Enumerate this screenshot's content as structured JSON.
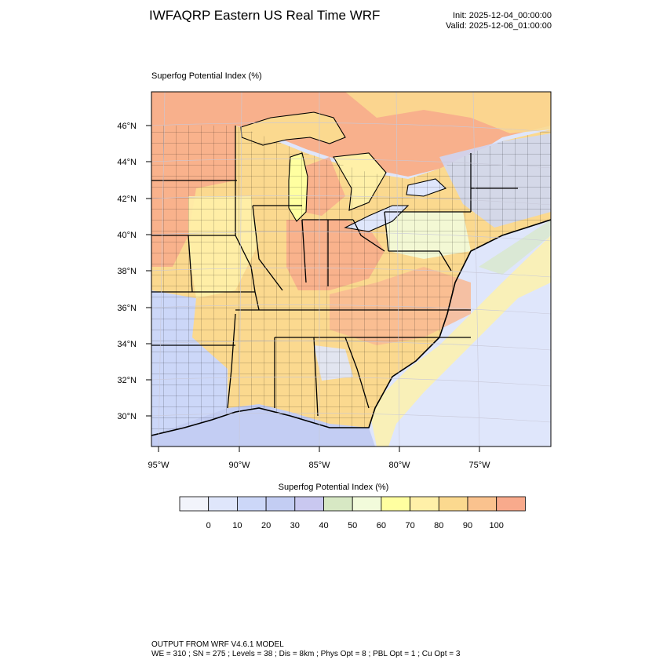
{
  "header": {
    "title": "IWFAQRP Eastern US Real Time WRF",
    "init": "Init: 2025-12-04_00:00:00",
    "valid": "Valid: 2025-12-06_01:00:00"
  },
  "plot": {
    "label": "Superfog Potential Index   (%)",
    "lat_labels": [
      "46°N",
      "44°N",
      "42°N",
      "40°N",
      "38°N",
      "36°N",
      "34°N",
      "32°N",
      "30°N"
    ],
    "lon_labels": [
      "95°W",
      "90°W",
      "85°W",
      "80°W",
      "75°W"
    ]
  },
  "colorbar": {
    "title": "Superfog Potential Index  (%)",
    "colors": [
      "#f2f4fb",
      "#dfe6fb",
      "#ccd7f8",
      "#c3cdf3",
      "#c9c8f0",
      "#d7e8c4",
      "#f2fbdb",
      "#ffffa0",
      "#fff0a8",
      "#fbd98f",
      "#fac28e",
      "#f8aa8c"
    ],
    "tick_labels": [
      "0",
      "10",
      "20",
      "30",
      "40",
      "50",
      "60",
      "70",
      "80",
      "90",
      "100"
    ]
  },
  "footer": {
    "line1": "OUTPUT FROM WRF V4.6.1 MODEL",
    "line2": "WE = 310 ; SN = 275 ; Levels = 38 ; Dis = 8km ; Phys Opt = 8 ; PBL Opt = 1 ; Cu Opt = 3"
  }
}
